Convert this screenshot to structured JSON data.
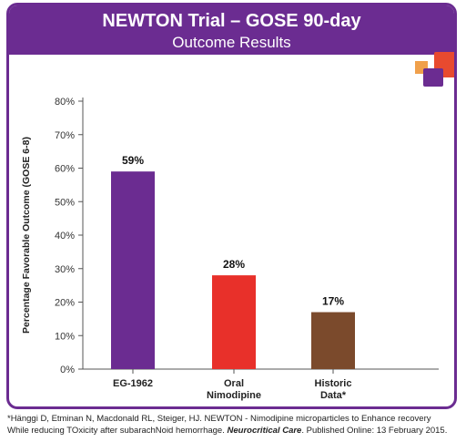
{
  "header": {
    "title": "NEWTON Trial – GOSE 90-day",
    "subtitle": "Outcome Results"
  },
  "colors": {
    "header": "#6b2c91",
    "bars": [
      "#6b2c91",
      "#e8302a",
      "#7b4a2c"
    ]
  },
  "chart_data": {
    "type": "bar",
    "categories": [
      [
        "EG-1962"
      ],
      [
        "Oral",
        "Nimodipine"
      ],
      [
        "Historic",
        "Data*"
      ]
    ],
    "values": [
      59,
      28,
      17
    ],
    "data_labels": [
      "59%",
      "28%",
      "17%"
    ],
    "ylabel": "Percentage Favorable Outcome (GOSE 6-8)",
    "ylim": [
      0,
      80
    ],
    "yticks": [
      "0%",
      "10%",
      "20%",
      "30%",
      "40%",
      "50%",
      "60%",
      "70%",
      "80%"
    ],
    "grid": false
  },
  "footnote": {
    "line1": "*Hänggi D, Etminan N, Macdonald RL, Steiger, HJ. NEWTON - Nimodipine microparticles to Enhance recovery",
    "line2_start": "While reducing TOxicity after subarachNoid hemorrhage. ",
    "journal": "Neurocritical Care",
    "line2_end": ". Published Online: 13 February 2015."
  }
}
